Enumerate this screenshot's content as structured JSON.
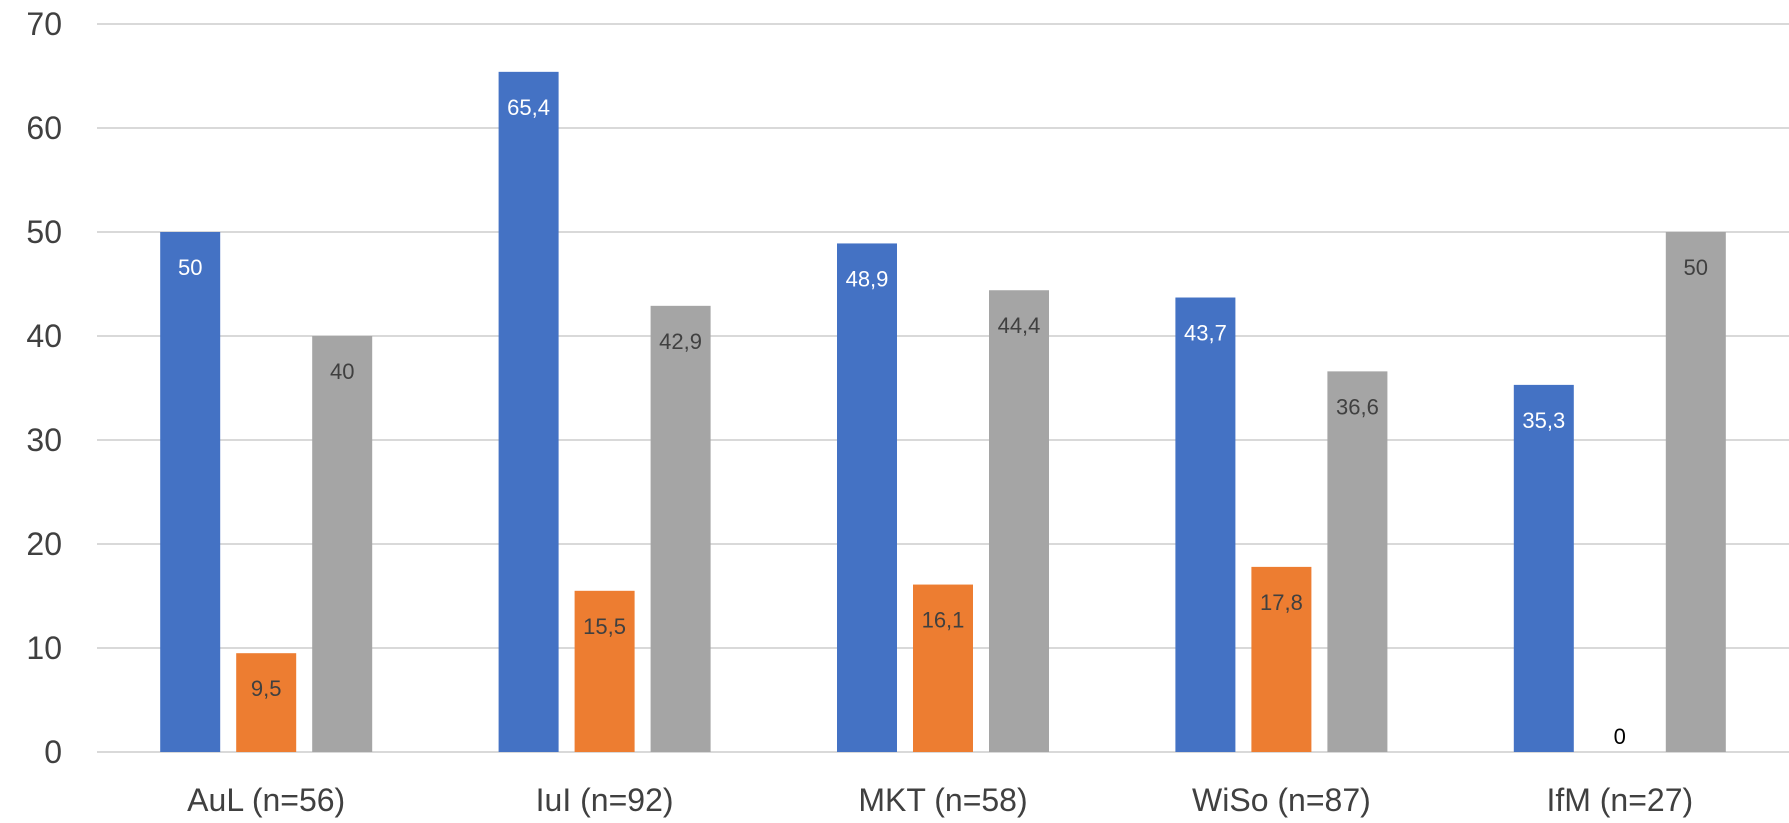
{
  "chart_data": {
    "type": "bar",
    "categories": [
      "AuL (n=56)",
      "IuI (n=92)",
      "MKT (n=58)",
      "WiSo (n=87)",
      "IfM (n=27)"
    ],
    "series": [
      {
        "values": [
          50,
          65.4,
          48.9,
          43.7,
          35.3
        ],
        "color": "#4472C4",
        "label_color": "#ffffff"
      },
      {
        "values": [
          9.5,
          15.5,
          16.1,
          17.8,
          0
        ],
        "color": "#ED7D31",
        "label_color": "#404040"
      },
      {
        "values": [
          40,
          42.9,
          44.4,
          36.6,
          50
        ],
        "color": "#A5A5A5",
        "label_color": "#404040"
      }
    ],
    "ylim": [
      0,
      70
    ],
    "yticks": [
      0,
      10,
      20,
      30,
      40,
      50,
      60,
      70
    ],
    "grid": true,
    "legend": "none",
    "decimal_separator": ","
  }
}
